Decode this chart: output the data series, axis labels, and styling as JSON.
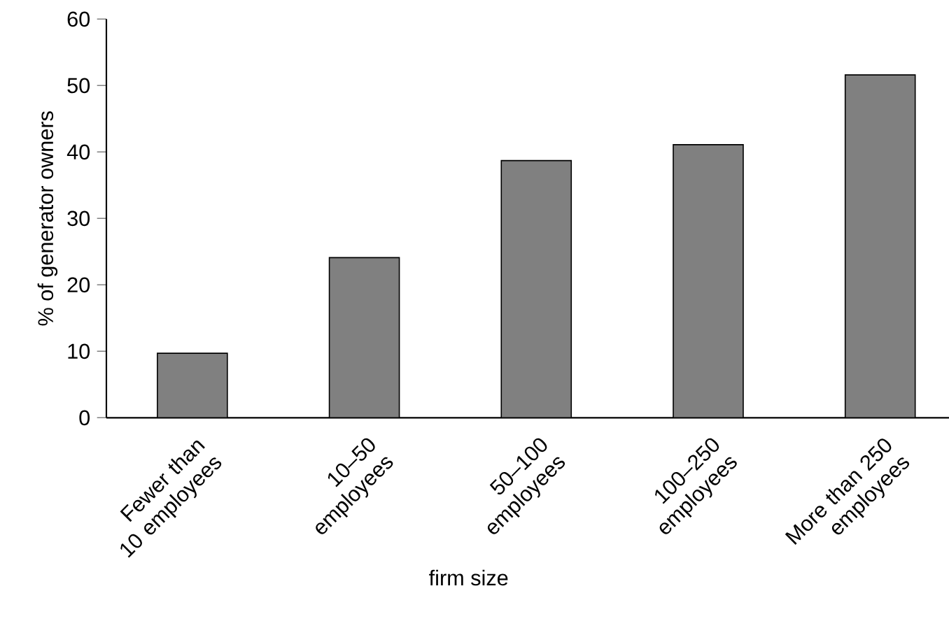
{
  "chart_data": {
    "type": "bar",
    "xlabel": "firm size",
    "ylabel": "% of generator owners",
    "categories": [
      "Fewer than 10 employees",
      "10–50 employees",
      "50–100 employees",
      "100–250 employees",
      "More than 250 employees"
    ],
    "values": [
      9.7,
      24.1,
      38.7,
      41.1,
      51.6
    ],
    "color": "#808080",
    "ylim": [
      0,
      60
    ],
    "yticks": [
      0,
      10,
      20,
      30,
      40,
      50,
      60
    ],
    "grid": false
  }
}
